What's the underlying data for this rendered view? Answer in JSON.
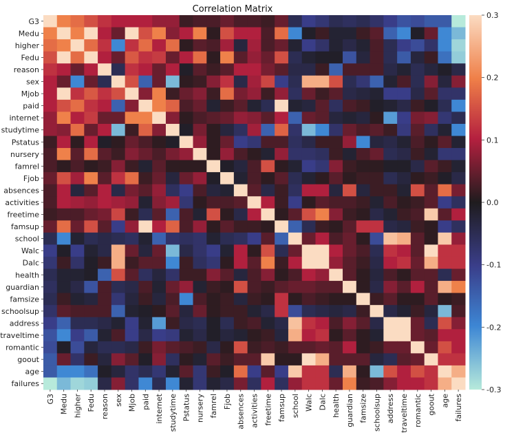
{
  "chart_data": {
    "type": "heatmap",
    "title": "Correlation Matrix",
    "labels": [
      "G3",
      "Medu",
      "higher",
      "Fedu",
      "reason",
      "sex",
      "Mjob",
      "paid",
      "internet",
      "studytime",
      "Pstatus",
      "nursery",
      "famrel",
      "Fjob",
      "absences",
      "activities",
      "freetime",
      "famsup",
      "school",
      "Walc",
      "Dalc",
      "health",
      "guardian",
      "famsize",
      "schoolsup",
      "address",
      "traveltime",
      "romantic",
      "goout",
      "age",
      "failures"
    ],
    "colorbar": {
      "min": -0.3,
      "max": 0.3,
      "ticks": [
        "0.3",
        "0.2",
        "0.1",
        "0.0",
        "-0.1",
        "-0.2",
        "-0.3"
      ]
    },
    "values": [
      [
        0.3,
        0.2,
        0.18,
        0.15,
        0.12,
        0.1,
        0.1,
        0.1,
        0.08,
        0.08,
        0.02,
        0.03,
        0.03,
        0.05,
        0.03,
        0.03,
        0.02,
        0.05,
        -0.05,
        -0.1,
        -0.08,
        -0.05,
        -0.06,
        -0.05,
        -0.07,
        -0.1,
        -0.13,
        -0.12,
        -0.14,
        -0.14,
        -0.3
      ],
      [
        0.2,
        0.3,
        0.2,
        0.3,
        0.1,
        0.05,
        0.3,
        0.15,
        0.2,
        0.07,
        0.1,
        0.2,
        0.01,
        0.15,
        0.1,
        0.1,
        0.03,
        0.18,
        -0.2,
        -0.01,
        0.02,
        -0.02,
        -0.02,
        0.02,
        0.04,
        -0.15,
        -0.2,
        -0.01,
        0.05,
        -0.2,
        -0.25
      ],
      [
        0.18,
        0.2,
        0.3,
        0.18,
        0.12,
        -0.2,
        0.12,
        0.18,
        0.1,
        0.18,
        0.01,
        0.04,
        0.03,
        0.09,
        -0.03,
        0.09,
        0.03,
        0.05,
        -0.02,
        -0.1,
        -0.07,
        -0.02,
        -0.04,
        -0.02,
        0.03,
        -0.05,
        -0.1,
        -0.12,
        -0.07,
        -0.2,
        -0.28
      ],
      [
        0.15,
        0.3,
        0.18,
        0.3,
        0.1,
        0.05,
        0.16,
        0.12,
        0.13,
        0.05,
        0.1,
        0.18,
        0.01,
        0.2,
        0.04,
        0.08,
        0.05,
        0.15,
        -0.05,
        -0.02,
        -0.01,
        -0.01,
        -0.13,
        -0.03,
        0.03,
        -0.05,
        -0.14,
        -0.03,
        0.02,
        -0.17,
        -0.27
      ],
      [
        0.12,
        0.1,
        0.05,
        0.1,
        0.3,
        -0.05,
        0.12,
        0.1,
        0.05,
        0.1,
        -0.01,
        0.04,
        0.02,
        0.04,
        0.1,
        0.1,
        0.06,
        0.04,
        -0.04,
        -0.04,
        0.02,
        -0.15,
        0.03,
        0.03,
        0.03,
        -0.04,
        -0.02,
        -0.05,
        -0.03,
        -0.01,
        -0.04
      ],
      [
        0.1,
        0.05,
        -0.2,
        0.05,
        -0.05,
        0.3,
        0.15,
        -0.15,
        0.05,
        -0.25,
        0.01,
        0.02,
        0.07,
        0.12,
        -0.04,
        0.09,
        0.14,
        -0.1,
        -0.05,
        0.25,
        0.25,
        0.15,
        -0.05,
        -0.08,
        -0.15,
        -0.02,
        0.03,
        -0.05,
        0.07,
        -0.03,
        0.07
      ],
      [
        0.1,
        0.3,
        0.12,
        0.16,
        0.12,
        0.15,
        0.3,
        0.07,
        0.2,
        0.02,
        0.05,
        0.07,
        0.02,
        0.18,
        0.06,
        0.08,
        0.02,
        0.08,
        -0.06,
        0.05,
        0.02,
        0.04,
        -0.04,
        -0.03,
        -0.02,
        -0.1,
        -0.1,
        -0.04,
        0.04,
        -0.07,
        -0.07
      ],
      [
        0.1,
        0.15,
        0.18,
        0.12,
        0.1,
        -0.15,
        0.07,
        0.3,
        0.2,
        0.17,
        0.03,
        0.05,
        -0.02,
        0.02,
        0.04,
        -0.02,
        -0.05,
        0.3,
        -0.02,
        -0.03,
        0.04,
        -0.06,
        0.03,
        0.02,
        -0.01,
        -0.02,
        -0.04,
        0.02,
        -0.01,
        -0.05,
        -0.2
      ],
      [
        0.08,
        0.2,
        0.1,
        0.13,
        0.05,
        0.05,
        0.2,
        0.2,
        0.3,
        0.07,
        0.01,
        0.03,
        0.04,
        0.05,
        0.08,
        0.07,
        0.04,
        0.1,
        -0.15,
        0.05,
        0.04,
        -0.03,
        -0.02,
        -0.03,
        0.01,
        -0.22,
        -0.1,
        0.06,
        0.07,
        -0.08,
        -0.05
      ],
      [
        0.08,
        0.07,
        0.18,
        0.05,
        0.1,
        -0.25,
        0.02,
        0.17,
        0.07,
        0.3,
        -0.01,
        0.06,
        0.01,
        -0.03,
        -0.06,
        0.09,
        -0.15,
        0.17,
        -0.07,
        -0.25,
        -0.2,
        -0.07,
        0.05,
        0.03,
        0.04,
        0.02,
        -0.09,
        0.04,
        -0.06,
        -0.02,
        -0.2
      ],
      [
        0.02,
        0.1,
        0.01,
        0.1,
        -0.01,
        0.01,
        0.05,
        0.03,
        0.01,
        -0.01,
        0.3,
        0.08,
        0.01,
        0.05,
        -0.1,
        -0.08,
        0.03,
        0.03,
        -0.06,
        -0.04,
        0.02,
        0.02,
        0.08,
        -0.2,
        -0.03,
        -0.04,
        -0.02,
        0.03,
        0.01,
        0.04,
        -0.02
      ],
      [
        0.03,
        0.2,
        0.04,
        0.18,
        0.04,
        0.02,
        0.07,
        0.05,
        0.03,
        0.06,
        0.08,
        0.3,
        0.01,
        0.08,
        0.03,
        0.01,
        -0.02,
        0.08,
        -0.07,
        -0.07,
        -0.06,
        0.02,
        -0.02,
        0.03,
        0.05,
        -0.05,
        -0.04,
        0.02,
        -0.02,
        -0.08,
        -0.08
      ],
      [
        0.03,
        0.01,
        0.03,
        0.01,
        0.02,
        0.07,
        0.02,
        -0.02,
        0.04,
        0.01,
        0.01,
        0.01,
        0.3,
        -0.01,
        -0.03,
        0.03,
        0.15,
        0.01,
        -0.02,
        -0.1,
        -0.08,
        0.07,
        0.02,
        0.01,
        0.01,
        -0.01,
        -0.01,
        -0.04,
        0.04,
        0.02,
        -0.02
      ],
      [
        0.05,
        0.15,
        0.09,
        0.2,
        0.04,
        0.12,
        0.18,
        0.02,
        0.05,
        -0.03,
        0.05,
        0.08,
        -0.01,
        0.3,
        -0.02,
        0.03,
        0.01,
        0.04,
        -0.05,
        -0.02,
        0.01,
        0.04,
        0.01,
        0.02,
        0.02,
        -0.05,
        -0.03,
        0.01,
        0.02,
        -0.01,
        -0.04
      ],
      [
        0.03,
        0.1,
        -0.03,
        0.04,
        0.1,
        -0.04,
        0.06,
        0.04,
        0.08,
        -0.06,
        -0.1,
        0.03,
        -0.03,
        -0.02,
        0.3,
        0.04,
        -0.04,
        0.02,
        -0.06,
        0.1,
        0.1,
        -0.03,
        0.15,
        -0.03,
        0.02,
        0.02,
        -0.02,
        0.15,
        0.04,
        0.18,
        0.06
      ],
      [
        0.03,
        0.1,
        0.09,
        0.08,
        0.1,
        0.09,
        0.08,
        -0.02,
        0.07,
        0.09,
        -0.08,
        0.01,
        0.03,
        0.03,
        0.04,
        0.3,
        0.1,
        0.02,
        -0.1,
        0.01,
        0.04,
        0.03,
        0.03,
        0.02,
        -0.02,
        0.03,
        0.01,
        0.02,
        0.04,
        -0.1,
        -0.06
      ],
      [
        0.02,
        0.03,
        0.03,
        0.05,
        0.06,
        0.14,
        0.02,
        -0.05,
        0.04,
        -0.15,
        0.03,
        -0.02,
        0.15,
        0.01,
        -0.04,
        0.1,
        0.3,
        0.01,
        0.04,
        0.15,
        0.2,
        0.07,
        0.02,
        0.01,
        -0.04,
        -0.02,
        0.02,
        0.03,
        0.28,
        0.04,
        0.1
      ],
      [
        0.05,
        0.18,
        0.05,
        0.15,
        0.04,
        -0.1,
        0.08,
        0.3,
        0.1,
        0.17,
        0.03,
        0.08,
        0.01,
        0.04,
        0.02,
        0.02,
        0.01,
        0.3,
        -0.15,
        -0.05,
        0.02,
        0.01,
        0.04,
        0.12,
        0.12,
        -0.04,
        -0.03,
        0.02,
        0.01,
        -0.1,
        -0.06
      ],
      [
        -0.05,
        -0.2,
        -0.02,
        -0.05,
        -0.04,
        -0.05,
        -0.06,
        -0.02,
        -0.15,
        -0.07,
        -0.06,
        -0.07,
        -0.02,
        -0.05,
        -0.06,
        -0.1,
        0.04,
        -0.15,
        0.3,
        0.05,
        0.1,
        0.03,
        0.05,
        0.01,
        -0.12,
        0.27,
        0.25,
        0.04,
        0.01,
        0.28,
        0.08
      ],
      [
        -0.1,
        -0.01,
        -0.1,
        -0.02,
        -0.04,
        0.25,
        0.05,
        -0.03,
        0.05,
        -0.25,
        -0.04,
        -0.07,
        -0.1,
        -0.02,
        0.1,
        0.01,
        0.15,
        -0.05,
        0.05,
        0.3,
        0.3,
        0.1,
        0.05,
        0.03,
        -0.05,
        0.12,
        0.1,
        0.04,
        0.3,
        0.12,
        0.12
      ],
      [
        -0.08,
        0.02,
        -0.07,
        -0.01,
        0.02,
        0.25,
        0.02,
        0.04,
        0.04,
        -0.2,
        0.02,
        -0.06,
        -0.08,
        0.01,
        0.1,
        0.04,
        0.2,
        0.02,
        0.1,
        0.3,
        0.3,
        0.08,
        0.04,
        0.02,
        -0.04,
        0.1,
        0.12,
        0.05,
        0.25,
        0.12,
        0.12
      ],
      [
        -0.05,
        -0.02,
        -0.02,
        -0.01,
        -0.15,
        0.15,
        0.04,
        -0.06,
        -0.03,
        -0.07,
        0.02,
        0.02,
        0.07,
        0.04,
        -0.03,
        0.03,
        0.07,
        0.01,
        0.03,
        0.1,
        0.08,
        0.3,
        0.04,
        0.01,
        -0.03,
        0.03,
        0.01,
        0.04,
        0.04,
        -0.05,
        0.05
      ],
      [
        -0.06,
        -0.02,
        -0.04,
        -0.13,
        0.03,
        -0.05,
        -0.04,
        0.03,
        -0.02,
        0.05,
        0.08,
        -0.02,
        0.02,
        0.01,
        0.15,
        0.03,
        0.02,
        0.04,
        0.05,
        0.05,
        0.04,
        0.04,
        0.3,
        0.01,
        -0.04,
        0.07,
        0.04,
        0.1,
        0.04,
        0.25,
        0.2
      ],
      [
        -0.05,
        0.02,
        -0.02,
        -0.03,
        0.03,
        -0.08,
        -0.03,
        0.02,
        -0.03,
        0.03,
        -0.2,
        0.03,
        0.01,
        0.02,
        -0.03,
        0.02,
        0.01,
        0.12,
        0.01,
        0.03,
        0.02,
        0.01,
        0.01,
        0.3,
        0.02,
        0.04,
        0.01,
        0.01,
        0.04,
        0.01,
        0.02
      ],
      [
        -0.07,
        0.04,
        0.03,
        0.03,
        0.03,
        -0.15,
        -0.02,
        -0.01,
        0.01,
        0.04,
        -0.03,
        0.05,
        0.01,
        0.02,
        0.02,
        -0.02,
        -0.04,
        0.12,
        -0.12,
        -0.05,
        -0.04,
        -0.03,
        -0.04,
        0.02,
        0.3,
        -0.04,
        -0.02,
        0.02,
        -0.03,
        -0.25,
        0.03
      ],
      [
        -0.1,
        -0.15,
        -0.05,
        -0.05,
        -0.04,
        -0.02,
        -0.1,
        -0.02,
        -0.22,
        0.02,
        -0.04,
        -0.05,
        -0.01,
        -0.05,
        0.02,
        0.03,
        -0.02,
        -0.04,
        0.27,
        0.12,
        0.1,
        0.03,
        0.07,
        0.04,
        -0.04,
        0.3,
        0.3,
        0.05,
        -0.05,
        0.15,
        0.07
      ],
      [
        -0.13,
        -0.2,
        -0.1,
        -0.14,
        -0.02,
        0.03,
        -0.1,
        -0.04,
        -0.1,
        -0.09,
        -0.02,
        -0.04,
        -0.01,
        -0.03,
        -0.02,
        0.01,
        0.02,
        -0.03,
        0.25,
        0.1,
        0.12,
        0.01,
        0.04,
        0.01,
        -0.02,
        0.3,
        0.3,
        0.05,
        0.04,
        0.1,
        0.1
      ],
      [
        -0.12,
        -0.01,
        -0.12,
        -0.03,
        -0.05,
        -0.05,
        -0.04,
        0.02,
        0.06,
        0.04,
        0.03,
        0.02,
        -0.04,
        0.01,
        0.15,
        0.02,
        0.03,
        0.02,
        0.04,
        0.04,
        0.05,
        0.04,
        0.1,
        0.01,
        0.02,
        0.05,
        0.05,
        0.3,
        0.05,
        0.15,
        0.1
      ],
      [
        -0.14,
        0.05,
        -0.07,
        0.02,
        -0.03,
        0.07,
        0.04,
        -0.01,
        0.07,
        -0.06,
        0.01,
        -0.02,
        0.04,
        0.02,
        0.04,
        0.04,
        0.28,
        0.01,
        0.01,
        0.3,
        0.25,
        0.04,
        0.04,
        0.04,
        -0.03,
        -0.05,
        0.04,
        0.05,
        0.3,
        0.12,
        0.12
      ],
      [
        -0.14,
        -0.2,
        -0.2,
        -0.17,
        -0.01,
        -0.03,
        -0.07,
        -0.05,
        -0.08,
        -0.02,
        0.04,
        -0.08,
        0.02,
        -0.01,
        0.18,
        -0.1,
        0.04,
        -0.1,
        0.28,
        0.12,
        0.12,
        -0.05,
        0.25,
        0.01,
        -0.25,
        0.15,
        0.1,
        0.15,
        0.12,
        0.3,
        0.25
      ],
      [
        -0.3,
        -0.25,
        -0.28,
        -0.27,
        -0.04,
        0.07,
        -0.07,
        -0.2,
        -0.05,
        -0.2,
        -0.02,
        -0.08,
        -0.02,
        -0.04,
        0.06,
        -0.06,
        0.1,
        -0.06,
        0.08,
        0.12,
        0.12,
        0.05,
        0.2,
        0.02,
        0.03,
        0.07,
        0.1,
        0.1,
        0.12,
        0.25,
        0.3
      ]
    ]
  }
}
